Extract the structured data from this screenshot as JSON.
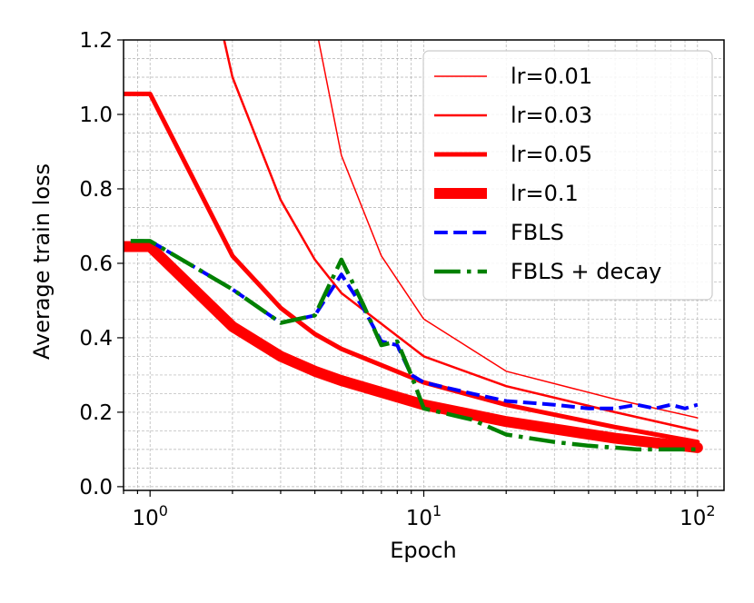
{
  "chart_data": {
    "type": "line",
    "xscale": "log",
    "xlabel": "Epoch",
    "ylabel": "Average train loss",
    "xlim": [
      0.8,
      125
    ],
    "ylim": [
      -0.01,
      1.2
    ],
    "grid": true,
    "legend_location": "top-right",
    "x_ticks": [
      {
        "value": 1,
        "base": "10",
        "exp": "0"
      },
      {
        "value": 10,
        "base": "10",
        "exp": "1"
      },
      {
        "value": 100,
        "base": "10",
        "exp": "2"
      }
    ],
    "y_ticks": [
      {
        "value": 0.0,
        "label": "0.0"
      },
      {
        "value": 0.2,
        "label": "0.2"
      },
      {
        "value": 0.4,
        "label": "0.4"
      },
      {
        "value": 0.6,
        "label": "0.6"
      },
      {
        "value": 0.8,
        "label": "0.8"
      },
      {
        "value": 1.0,
        "label": "1.0"
      },
      {
        "value": 1.2,
        "label": "1.2"
      }
    ],
    "series": [
      {
        "name": "lr=0.01",
        "color": "#ff0000",
        "style": "solid",
        "weight": 1.5,
        "x": [
          4,
          5,
          7,
          10,
          20,
          50,
          100
        ],
        "y": [
          1.25,
          0.89,
          0.62,
          0.45,
          0.31,
          0.235,
          0.185
        ]
      },
      {
        "name": "lr=0.03",
        "color": "#ff0000",
        "style": "solid",
        "weight": 2.5,
        "x": [
          1.8,
          2,
          3,
          4,
          5,
          10,
          20,
          50,
          100
        ],
        "y": [
          1.25,
          1.1,
          0.77,
          0.61,
          0.52,
          0.35,
          0.27,
          0.2,
          0.15
        ]
      },
      {
        "name": "lr=0.05",
        "color": "#ff0000",
        "style": "solid",
        "weight": 5,
        "x": [
          0.8,
          1,
          2,
          3,
          4,
          5,
          10,
          20,
          50,
          100
        ],
        "y": [
          1.055,
          1.055,
          0.62,
          0.48,
          0.41,
          0.37,
          0.28,
          0.22,
          0.16,
          0.12
        ]
      },
      {
        "name": "lr=0.1",
        "color": "#ff0000",
        "style": "solid",
        "weight": 12,
        "x": [
          0.8,
          1,
          2,
          3,
          4,
          5,
          10,
          20,
          50,
          100
        ],
        "y": [
          0.645,
          0.645,
          0.43,
          0.35,
          0.31,
          0.285,
          0.22,
          0.175,
          0.13,
          0.105
        ]
      },
      {
        "name": "FBLS",
        "color": "#0000ff",
        "style": "dashed",
        "weight": 4,
        "x": [
          0.85,
          1,
          2,
          3,
          4,
          5,
          6,
          7,
          8,
          9,
          10,
          15,
          20,
          30,
          40,
          50,
          60,
          70,
          80,
          90,
          100
        ],
        "y": [
          0.66,
          0.66,
          0.53,
          0.44,
          0.46,
          0.57,
          0.48,
          0.39,
          0.38,
          0.3,
          0.28,
          0.25,
          0.23,
          0.22,
          0.21,
          0.21,
          0.22,
          0.21,
          0.22,
          0.21,
          0.22
        ]
      },
      {
        "name": "FBLS + decay",
        "color": "#008000",
        "style": "dashdot",
        "weight": 4.5,
        "x": [
          0.85,
          1,
          2,
          3,
          4,
          5,
          6,
          7,
          8,
          9,
          10,
          15,
          20,
          30,
          40,
          50,
          60,
          70,
          80,
          90,
          100
        ],
        "y": [
          0.66,
          0.66,
          0.53,
          0.44,
          0.46,
          0.61,
          0.49,
          0.38,
          0.39,
          0.3,
          0.21,
          0.18,
          0.14,
          0.12,
          0.11,
          0.105,
          0.1,
          0.1,
          0.1,
          0.1,
          0.1
        ]
      }
    ]
  }
}
